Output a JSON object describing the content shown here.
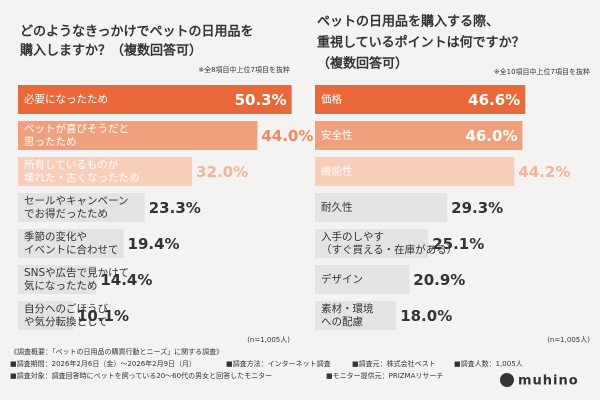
{
  "chart_data": [
    {
      "type": "barh",
      "title": [
        "どのようなきっかけでペットの日用品を",
        "購入しますか？（複数回答可）"
      ],
      "note": "※全8項目中上位7項目を抜粋",
      "sample": "(n=1,005人)",
      "categories": [
        [
          "必要になったため"
        ],
        [
          "ペットが喜びそうだと",
          "思ったため"
        ],
        [
          "所有しているものが",
          "壊れた・古くなったため"
        ],
        [
          "セールやキャンペーン",
          "でお得だったため"
        ],
        [
          "季節の変化や",
          "イベントに合わせて"
        ],
        [
          "SNSや広告で見かけて",
          "気になったため"
        ],
        [
          "自分へのごほうび",
          "や気分転換として"
        ]
      ],
      "values": [
        50.3,
        44.0,
        32.0,
        23.3,
        19.4,
        14.4,
        10.1
      ],
      "value_labels": [
        "50.3%",
        "44.0%",
        "32.0%",
        "23.3%",
        "19.4%",
        "14.4%",
        "10.1%"
      ],
      "colors": [
        "#e8683a",
        "#f0a07c",
        "#f8cdb9",
        "#e3e3e3",
        "#e3e3e3",
        "#e3e3e3",
        "#e3e3e3"
      ],
      "label_colors": [
        "#ffffff",
        "#ec8a5c",
        "#f3b59a",
        "#333333",
        "#333333",
        "#333333",
        "#333333"
      ],
      "category_colors": [
        "#ffffff",
        "#ffffff",
        "#ffffff",
        "#333333",
        "#333333",
        "#333333",
        "#333333"
      ],
      "xlim": [
        0,
        50
      ]
    },
    {
      "type": "barh",
      "title": [
        "ペットの日用品を購入する際、",
        "重視しているポイントは何ですか？",
        "（複数回答可）"
      ],
      "note": "※全10項目中上位7項目を抜粋",
      "sample": "(n=1,005人)",
      "categories": [
        [
          "価格"
        ],
        [
          "安全性"
        ],
        [
          "機能性"
        ],
        [
          "耐久性"
        ],
        [
          "入手のしやす",
          "（すぐ買える・在庫がある）"
        ],
        [
          "デザイン"
        ],
        [
          "素材・環境",
          "への配慮"
        ]
      ],
      "values": [
        46.6,
        46.0,
        44.2,
        29.3,
        25.1,
        20.9,
        18.0
      ],
      "value_labels": [
        "46.6%",
        "46.0%",
        "44.2%",
        "29.3%",
        "25.1%",
        "20.9%",
        "18.0%"
      ],
      "colors": [
        "#e8683a",
        "#f0a07c",
        "#f8cdb9",
        "#e3e3e3",
        "#e3e3e3",
        "#e3e3e3",
        "#e3e3e3"
      ],
      "label_colors": [
        "#ffffff",
        "#ffffff",
        "#f3b59a",
        "#333333",
        "#333333",
        "#333333",
        "#333333"
      ],
      "category_colors": [
        "#ffffff",
        "#ffffff",
        "#ffffff",
        "#333333",
        "#333333",
        "#333333",
        "#333333"
      ],
      "xlim": [
        0,
        47
      ]
    }
  ],
  "footer": {
    "heading": "《調査概要：「ペットの日用品の購買行動とニーズ」に関する調査》",
    "line1": [
      "■調査期間：2026年2月6日（金）〜2026年2月9日（月）",
      "■調査方法：インターネット調査",
      "■調査元：株式会社ベスト",
      "■調査人数：1,005人"
    ],
    "line2": [
      "■調査対象：調査回答時にペットを飼っている20〜60代の男女と回答したモニター",
      "■モニター提供元：PRIZMAリサーチ"
    ],
    "logo": "muhino"
  }
}
